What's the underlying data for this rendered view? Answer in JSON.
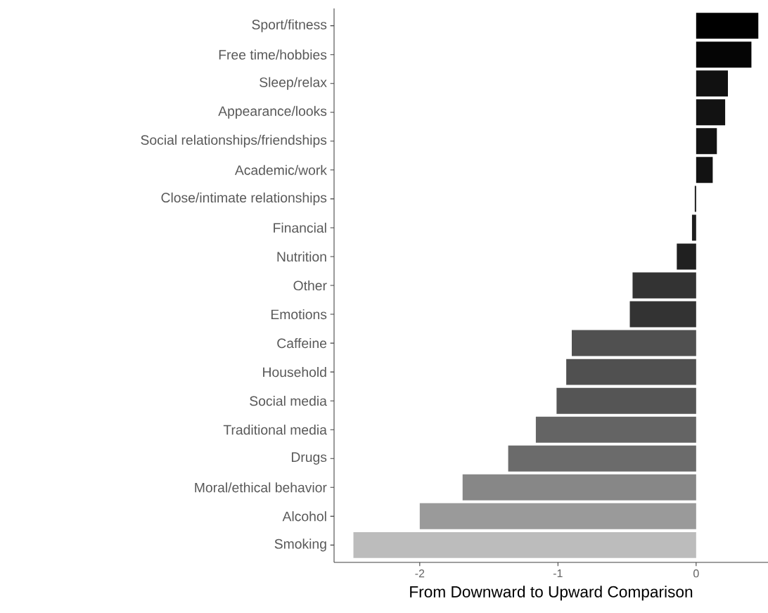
{
  "chart_data": {
    "type": "bar",
    "orientation": "horizontal",
    "xlabel": "From Downward to Upward Comparison",
    "categories": [
      "Sport/fitness",
      "Free time/hobbies",
      "Sleep/relax",
      "Appearance/looks",
      "Social relationships/friendships",
      "Academic/work",
      "Close/intimate relationships",
      "Financial",
      "Nutrition",
      "Other",
      "Emotions",
      "Caffeine",
      "Household",
      "Social media",
      "Traditional media",
      "Drugs",
      "Moral/ethical behavior",
      "Alcohol",
      "Smoking"
    ],
    "values": [
      0.45,
      0.4,
      0.23,
      0.21,
      0.15,
      0.12,
      -0.01,
      -0.03,
      -0.14,
      -0.46,
      -0.48,
      -0.9,
      -0.94,
      -1.01,
      -1.16,
      -1.36,
      -1.69,
      -2.0,
      -2.48
    ],
    "colors": [
      "#000000",
      "#050505",
      "#111111",
      "#121212",
      "#121212",
      "#121212",
      "#1a1a1a",
      "#1e1e1e",
      "#202020",
      "#333333",
      "#333333",
      "#505050",
      "#505050",
      "#555555",
      "#646464",
      "#6b6b6b",
      "#878787",
      "#9a9a9a",
      "#bcbcbc"
    ],
    "xlim": [
      -2.62,
      0.52
    ],
    "xticks": [
      -2,
      -1,
      0
    ]
  }
}
